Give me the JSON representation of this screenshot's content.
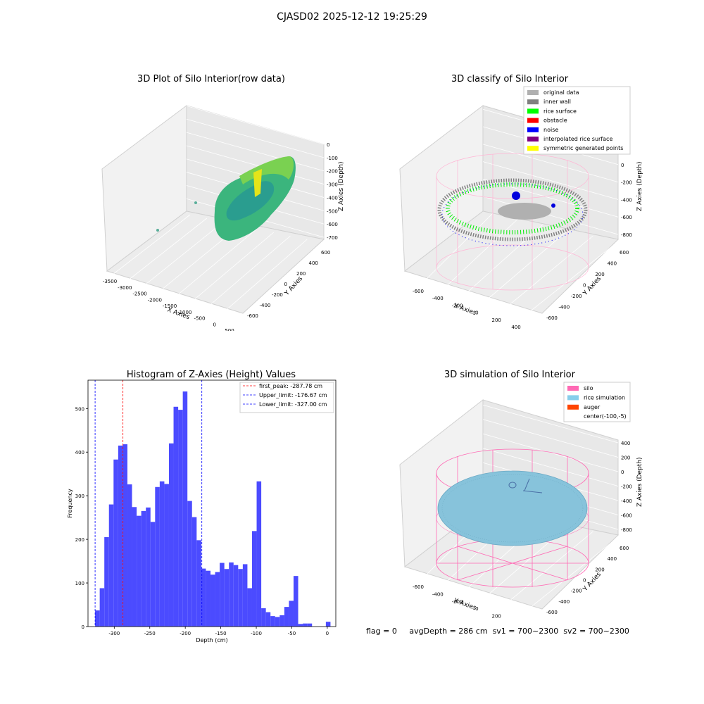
{
  "figure": {
    "title": "CJASD02 2025-12-12 19:25:29",
    "status": {
      "flag": "flag = 0",
      "avg_depth": "avgDepth = 286 cm",
      "sv1": "sv1 = 700~2300",
      "sv2": "sv2 = 700~2300"
    }
  },
  "chart_data": [
    {
      "type": "scatter",
      "projection": "3d",
      "title": "3D Plot of Silo Interior(row data)",
      "xlabel": "X Axies",
      "ylabel": "Y Axies",
      "zlabel": "Z Axies (Depth)",
      "xticks": [
        -3500,
        -3000,
        -2500,
        -2000,
        -1500,
        -1000,
        -500,
        0,
        500
      ],
      "yticks": [
        -600,
        -400,
        -200,
        0,
        200,
        400,
        600
      ],
      "zticks": [
        0,
        -100,
        -200,
        -300,
        -400,
        -500,
        -600,
        -700
      ],
      "colormap": "viridis"
    },
    {
      "type": "scatter",
      "projection": "3d",
      "title": "3D classify of Silo Interior",
      "xlabel": "X Axies",
      "ylabel": "Y Axies",
      "zlabel": "Z Axies (Depth)",
      "xticks": [
        -600,
        -400,
        -200,
        0,
        200,
        400
      ],
      "yticks": [
        -600,
        -400,
        -200,
        0,
        200,
        400,
        600
      ],
      "zticks": [
        200,
        0,
        -200,
        -400,
        -600,
        -800
      ],
      "legend_position": "top-right",
      "legend": [
        {
          "name": "original data",
          "color": "#b0b0b0"
        },
        {
          "name": "inner wall",
          "color": "#808080"
        },
        {
          "name": "rice surface",
          "color": "#00ff00"
        },
        {
          "name": "obstacle",
          "color": "#ff0000"
        },
        {
          "name": "noise",
          "color": "#0000ff"
        },
        {
          "name": "interpolated rice surface",
          "color": "#800080"
        },
        {
          "name": "symmetric generated points",
          "color": "#ffff00"
        }
      ]
    },
    {
      "type": "bar",
      "title": "Histogram of Z-Axies (Height) Values",
      "xlabel": "Depth (cm)",
      "ylabel": "Frequency",
      "xlim": [
        -337,
        12
      ],
      "ylim": [
        0,
        565
      ],
      "xticks": [
        -300,
        -250,
        -200,
        -150,
        -100,
        -50,
        0
      ],
      "yticks": [
        0,
        100,
        200,
        300,
        400,
        500
      ],
      "bin_width": 6.5,
      "bar_color": "#4b4bff",
      "bins": [
        [
          -327.0,
          37
        ],
        [
          -320.5,
          88
        ],
        [
          -314.0,
          205
        ],
        [
          -307.5,
          280
        ],
        [
          -301.0,
          383
        ],
        [
          -294.5,
          415
        ],
        [
          -288.0,
          418
        ],
        [
          -281.5,
          326
        ],
        [
          -275.0,
          274
        ],
        [
          -268.5,
          254
        ],
        [
          -262.0,
          265
        ],
        [
          -255.5,
          273
        ],
        [
          -249.0,
          240
        ],
        [
          -242.5,
          320
        ],
        [
          -236.0,
          333
        ],
        [
          -229.5,
          327
        ],
        [
          -223.0,
          420
        ],
        [
          -216.5,
          504
        ],
        [
          -210.0,
          497
        ],
        [
          -203.5,
          539
        ],
        [
          -197.0,
          288
        ],
        [
          -190.5,
          251
        ],
        [
          -184.0,
          198
        ],
        [
          -177.5,
          133
        ],
        [
          -171.0,
          128
        ],
        [
          -164.5,
          119
        ],
        [
          -158.0,
          125
        ],
        [
          -151.5,
          146
        ],
        [
          -145.0,
          132
        ],
        [
          -138.5,
          147
        ],
        [
          -132.0,
          141
        ],
        [
          -125.5,
          132
        ],
        [
          -119.0,
          143
        ],
        [
          -112.5,
          88
        ],
        [
          -106.0,
          219
        ],
        [
          -99.5,
          333
        ],
        [
          -93.0,
          42
        ],
        [
          -86.5,
          33
        ],
        [
          -80.0,
          24
        ],
        [
          -73.5,
          22
        ],
        [
          -67.0,
          26
        ],
        [
          -60.5,
          45
        ],
        [
          -54.0,
          59
        ],
        [
          -47.5,
          116
        ],
        [
          -41.0,
          6
        ],
        [
          -34.5,
          7
        ],
        [
          -28.0,
          7
        ],
        [
          -2.0,
          11
        ]
      ],
      "vlines": [
        {
          "label": "first_peak: -287.78 cm",
          "x": -287.78,
          "color": "#ff0000"
        },
        {
          "label": "Upper_limit: -176.67 cm",
          "x": -176.67,
          "color": "#0000ff"
        },
        {
          "label": "Lower_limit: -327.00 cm",
          "x": -327.0,
          "color": "#0000ff"
        }
      ],
      "legend_position": "top-right"
    },
    {
      "type": "scatter",
      "projection": "3d",
      "title": "3D simulation of Silo Interior",
      "xlabel": "X Axies",
      "ylabel": "Y Axies",
      "zlabel": "Z Axies (Depth)",
      "xticks": [
        -600,
        -400,
        -200,
        0,
        200,
        400
      ],
      "yticks": [
        -600,
        -400,
        -200,
        0,
        200,
        400,
        600
      ],
      "zticks": [
        400,
        200,
        0,
        -200,
        -400,
        -600,
        -800
      ],
      "legend_position": "top-right",
      "legend": [
        {
          "name": "silo",
          "color": "#ff69b4"
        },
        {
          "name": "rice simulation",
          "color": "#87ceeb"
        },
        {
          "name": "auger",
          "color": "#ff4500"
        },
        {
          "name": "center(-100,-5)",
          "color": ""
        }
      ]
    }
  ]
}
